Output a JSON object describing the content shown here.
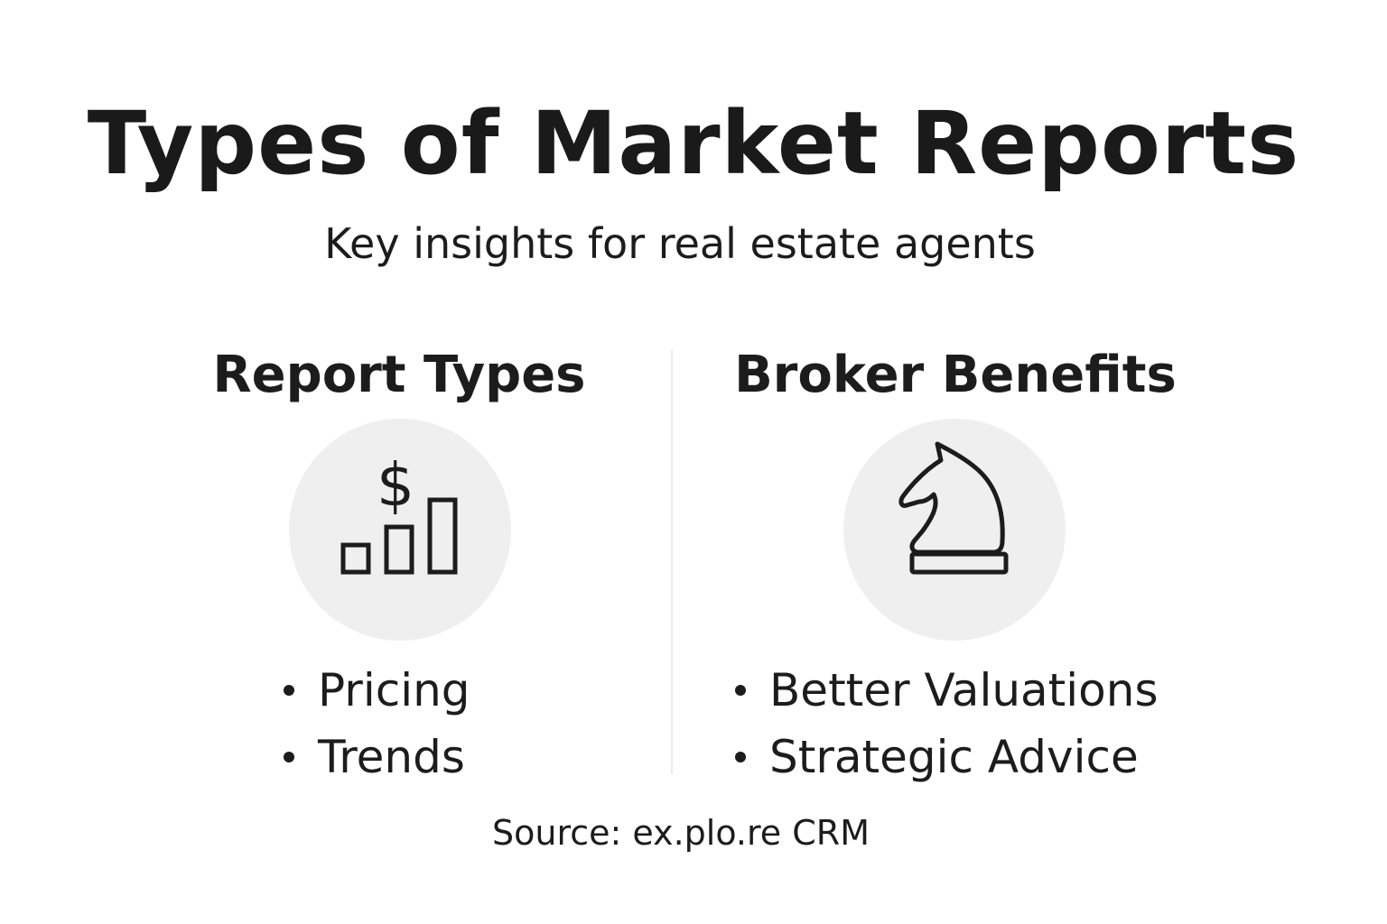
{
  "title": "Types of Market Reports",
  "subtitle": "Key insights for real estate agents",
  "columns": [
    {
      "heading": "Report Types",
      "icon": "dollar-bar-chart-icon",
      "icon_symbol": "$",
      "bullets": [
        "Pricing",
        "Trends"
      ]
    },
    {
      "heading": "Broker Benefits",
      "icon": "chess-knight-icon",
      "bullets": [
        "Better Valuations",
        "Strategic Advice"
      ]
    }
  ],
  "source": "Source: ex.plo.re CRM",
  "colors": {
    "text": "#1c1c1c",
    "icon_circle": "#efefef",
    "divider": "#ececec",
    "background": "#ffffff"
  }
}
